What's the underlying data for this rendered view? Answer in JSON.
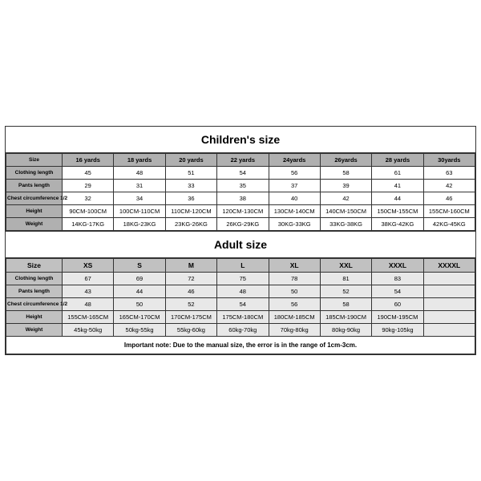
{
  "children": {
    "title": "Children's size",
    "columns": [
      "Size",
      "16 yards",
      "18 yards",
      "20 yards",
      "22 yards",
      "24yards",
      "26yards",
      "28 yards",
      "30yards"
    ],
    "rows": [
      {
        "label": "Clothing length",
        "cells": [
          "45",
          "48",
          "51",
          "54",
          "56",
          "58",
          "61",
          "63"
        ]
      },
      {
        "label": "Pants length",
        "cells": [
          "29",
          "31",
          "33",
          "35",
          "37",
          "39",
          "41",
          "42"
        ]
      },
      {
        "label": "Chest circumference 1/2",
        "cells": [
          "32",
          "34",
          "36",
          "38",
          "40",
          "42",
          "44",
          "46"
        ]
      },
      {
        "label": "Height",
        "cells": [
          "90CM-100CM",
          "100CM-110CM",
          "110CM-120CM",
          "120CM-130CM",
          "130CM-140CM",
          "140CM-150CM",
          "150CM-155CM",
          "155CM-160CM"
        ]
      },
      {
        "label": "Weight",
        "cells": [
          "14KG-17KG",
          "18KG-23KG",
          "23KG-26KG",
          "26KG-29KG",
          "30KG-33KG",
          "33KG-38KG",
          "38KG-42KG",
          "42KG-45KG"
        ]
      }
    ]
  },
  "adult": {
    "title": "Adult size",
    "columns": [
      "Size",
      "XS",
      "S",
      "M",
      "L",
      "XL",
      "XXL",
      "XXXL",
      "XXXXL"
    ],
    "rows": [
      {
        "label": "Clothing length",
        "cells": [
          "67",
          "69",
          "72",
          "75",
          "78",
          "81",
          "83",
          ""
        ]
      },
      {
        "label": "Pants length",
        "cells": [
          "43",
          "44",
          "46",
          "48",
          "50",
          "52",
          "54",
          ""
        ]
      },
      {
        "label": "Chest circumference 1/2",
        "cells": [
          "48",
          "50",
          "52",
          "54",
          "56",
          "58",
          "60",
          ""
        ]
      },
      {
        "label": "Height",
        "cells": [
          "155CM-165CM",
          "165CM-170CM",
          "170CM-175CM",
          "175CM-180CM",
          "180CM-185CM",
          "185CM-190CM",
          "190CM-195CM",
          ""
        ]
      },
      {
        "label": "Weight",
        "cells": [
          "45kg-50kg",
          "50kg-55kg",
          "55kg-60kg",
          "60kg-70kg",
          "70kg-80kg",
          "80kg-90kg",
          "90kg-105kg",
          ""
        ]
      }
    ]
  },
  "note": "Important note: Due to the manual size, the error is in the range of 1cm-3cm.",
  "style": {
    "border_color": "#333333",
    "header_bg_children": "#b0b0b0",
    "header_bg_adult": "#c1c1c1",
    "adult_cell_bg": "#e8e8e8",
    "title_fontsize": 14,
    "cell_fontsize": 7.5,
    "table_type": "table"
  }
}
